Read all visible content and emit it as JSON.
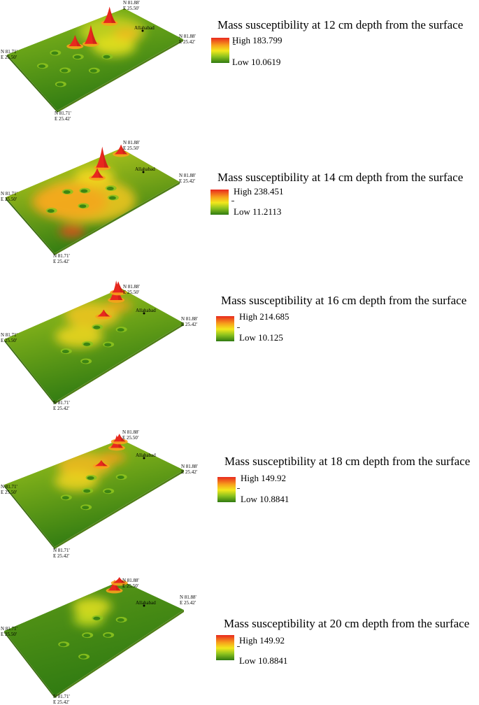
{
  "labels": {
    "corner_top": [
      "N 81.88'",
      "E 25.50'"
    ],
    "corner_right": [
      "N 81.88'",
      "E 25.42'"
    ],
    "corner_left": [
      "N 81.71'",
      "E 25.50'"
    ],
    "corner_bottom": [
      "N 81.71'",
      "E 25.42'"
    ],
    "city": "Allahabad"
  },
  "colors": {
    "high": "#e8281e",
    "mid_high": "#f7a21b",
    "mid": "#f2e81c",
    "mid_low": "#8cc21e",
    "low": "#2f7a12"
  },
  "panels": [
    {
      "title": "Mass susceptibility at 12 cm depth from the surface",
      "high_label": "High 183.799",
      "low_label": "Low 10.0619"
    },
    {
      "title": "Mass susceptibility at 14 cm depth from the surface",
      "high_label": "High 238.451",
      "low_label": "Low 11.2113"
    },
    {
      "title": "Mass susceptibility at 16 cm depth from the surface",
      "high_label": "High 214.685",
      "low_label": "Low 10.125"
    },
    {
      "title": "Mass susceptibility at 18 cm depth from the surface",
      "high_label": "High 149.92",
      "low_label": "Low 10.8841"
    },
    {
      "title": "Mass susceptibility at 20 cm depth from the surface",
      "high_label": "High 149.92",
      "low_label": "Low 10.8841"
    }
  ]
}
